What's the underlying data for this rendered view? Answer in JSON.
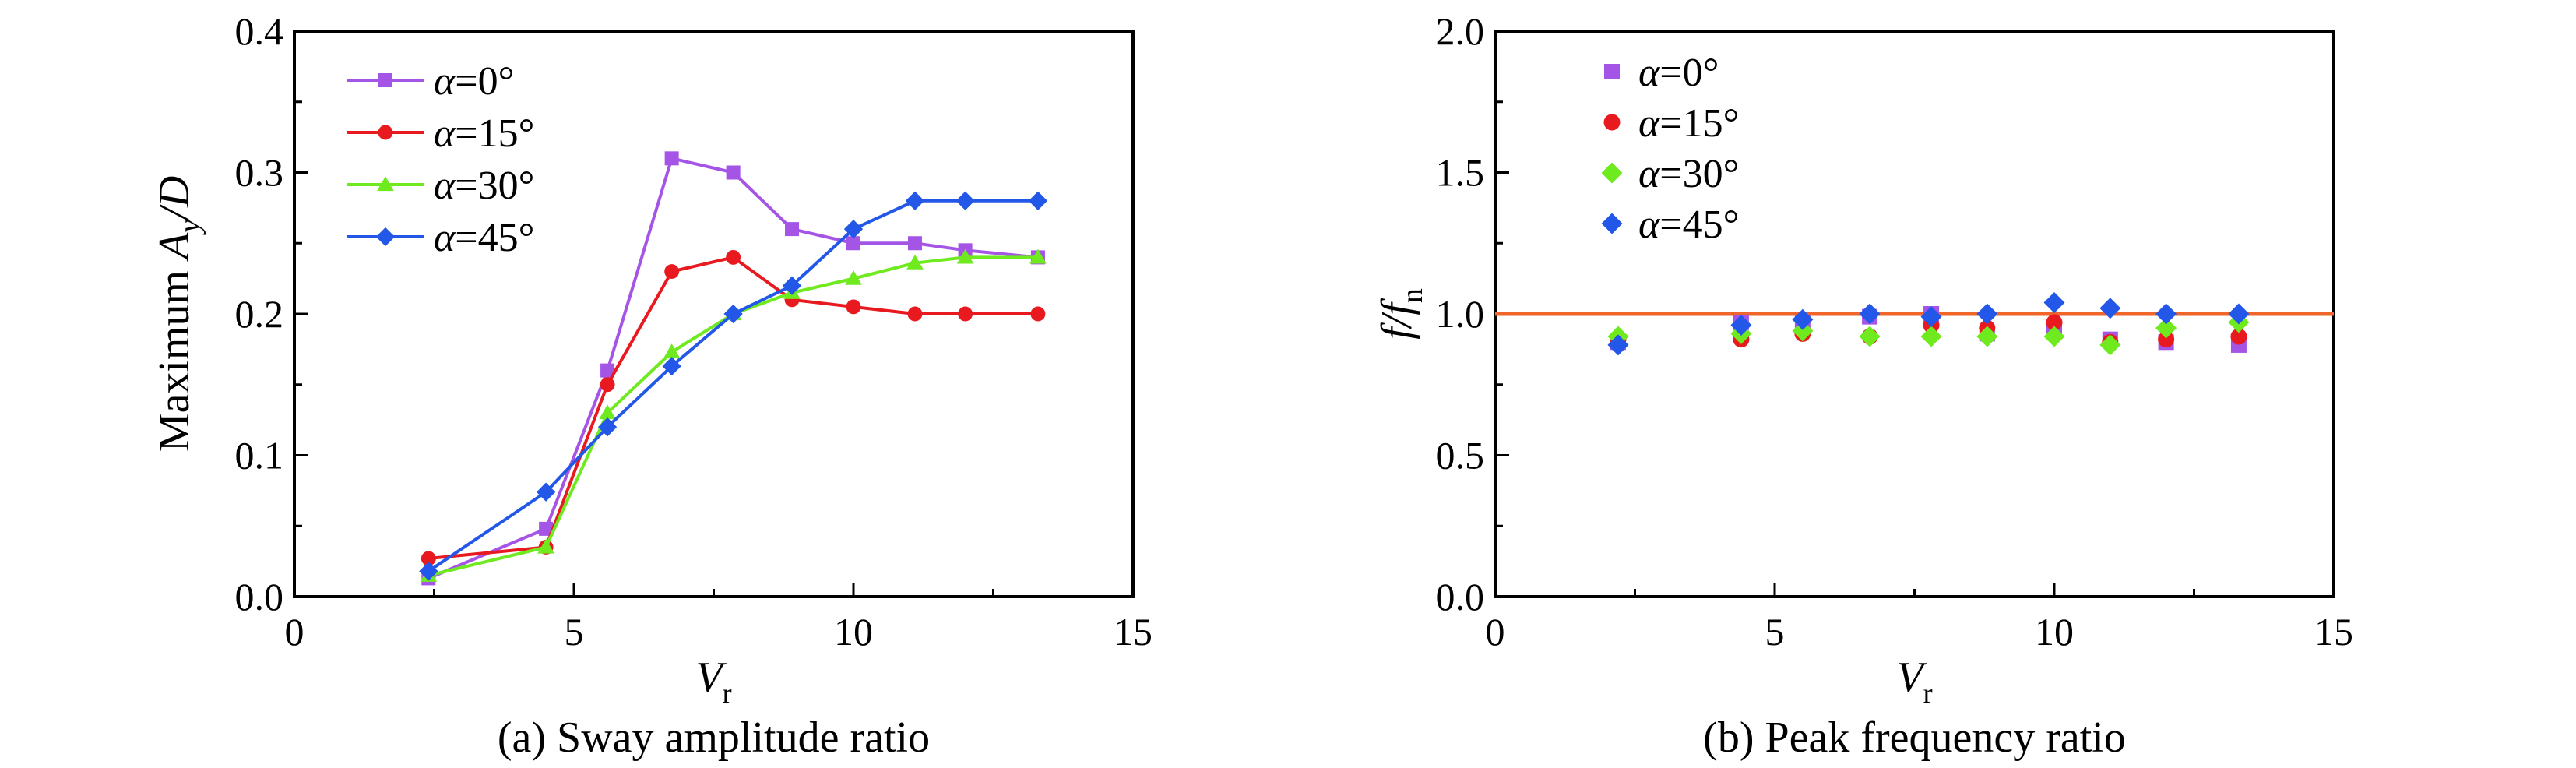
{
  "chart_data": [
    {
      "type": "line",
      "caption": "(a) Sway amplitude ratio",
      "xlabel": {
        "main": "V",
        "sub": "r"
      },
      "ylabel": {
        "prefix": "Maximum ",
        "main": "A",
        "sub": "y",
        "suffix": "/D"
      },
      "xlim": [
        0,
        15
      ],
      "ylim": [
        0,
        0.4
      ],
      "xticks": [
        "0",
        "5",
        "10",
        "15"
      ],
      "yticks": [
        "0.0",
        "0.1",
        "0.2",
        "0.3",
        "0.4"
      ],
      "legend_position": "top-left",
      "x": [
        2.4,
        4.5,
        5.6,
        6.75,
        7.85,
        8.9,
        10.0,
        11.1,
        12.0,
        13.3
      ],
      "series": [
        {
          "name": "α=0°",
          "color": "#a555e6",
          "marker": "square",
          "values": [
            0.013,
            0.048,
            0.16,
            0.31,
            0.3,
            0.26,
            0.25,
            0.25,
            0.245,
            0.24
          ]
        },
        {
          "name": "α=15°",
          "color": "#e8191f",
          "marker": "circle",
          "values": [
            0.027,
            0.035,
            0.15,
            0.23,
            0.24,
            0.21,
            0.205,
            0.2,
            0.2,
            0.2
          ]
        },
        {
          "name": "α=30°",
          "color": "#6fea1f",
          "marker": "triangle",
          "values": [
            0.015,
            0.035,
            0.13,
            0.173,
            0.2,
            0.215,
            0.225,
            0.236,
            0.24,
            0.24
          ]
        },
        {
          "name": "α=45°",
          "color": "#2357e8",
          "marker": "diamond",
          "values": [
            0.018,
            0.074,
            0.12,
            0.163,
            0.2,
            0.22,
            0.26,
            0.28,
            0.28,
            0.28
          ]
        }
      ]
    },
    {
      "type": "scatter",
      "caption": "(b) Peak frequency ratio",
      "xlabel": {
        "main": "V",
        "sub": "r"
      },
      "ylabel": {
        "pre": "f",
        "mid": "/f",
        "sub": "n"
      },
      "xlim": [
        0,
        15
      ],
      "ylim": [
        0,
        2.0
      ],
      "xticks": [
        "0",
        "5",
        "10",
        "15"
      ],
      "yticks": [
        "0.0",
        "0.5",
        "1.0",
        "1.5",
        "2.0"
      ],
      "legend_position": "top-left",
      "reference_line": {
        "y": 1.0,
        "color": "#f0662a"
      },
      "series": [
        {
          "name": "α=0°",
          "color": "#a555e6",
          "marker": "square",
          "x": [
            2.2,
            4.4,
            5.5,
            6.7,
            7.8,
            8.8,
            10.0,
            11.0,
            12.0,
            13.3
          ],
          "y": [
            0.9,
            0.97,
            0.97,
            0.99,
            1.0,
            0.93,
            0.95,
            0.91,
            0.9,
            0.89
          ]
        },
        {
          "name": "α=15°",
          "color": "#e8191f",
          "marker": "circle",
          "x": [
            2.2,
            4.4,
            5.5,
            6.7,
            7.8,
            8.8,
            10.0,
            11.0,
            12.0,
            13.3
          ],
          "y": [
            0.91,
            0.91,
            0.93,
            0.92,
            0.96,
            0.95,
            0.97,
            0.9,
            0.91,
            0.92
          ]
        },
        {
          "name": "α=30°",
          "color": "#6fea1f",
          "marker": "diamond",
          "x": [
            2.2,
            4.4,
            5.5,
            6.7,
            7.8,
            8.8,
            10.0,
            11.0,
            12.0,
            13.3
          ],
          "y": [
            0.92,
            0.93,
            0.94,
            0.92,
            0.92,
            0.92,
            0.92,
            0.89,
            0.95,
            0.97
          ]
        },
        {
          "name": "α=45°",
          "color": "#2357e8",
          "marker": "diamond",
          "x": [
            2.2,
            4.4,
            5.5,
            6.7,
            7.8,
            8.8,
            10.0,
            11.0,
            12.0,
            13.3
          ],
          "y": [
            0.89,
            0.96,
            0.98,
            1.0,
            0.99,
            1.0,
            1.04,
            1.02,
            1.0,
            1.0
          ]
        }
      ]
    }
  ]
}
